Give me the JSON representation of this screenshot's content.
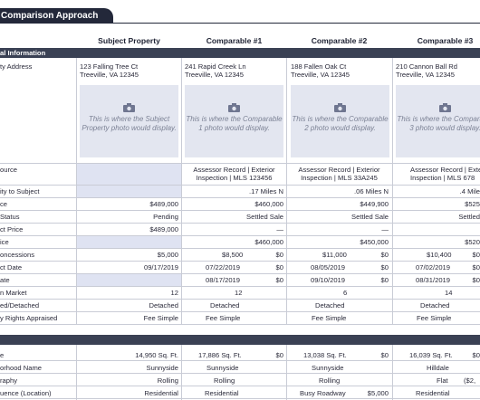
{
  "tab_title": "Comparison Approach",
  "columns": [
    "Subject Property",
    "Comparable #1",
    "Comparable #2",
    "Comparable #3"
  ],
  "sections": {
    "general": "al Information"
  },
  "labels": {
    "address": "ty Address",
    "source": "ource",
    "proximity": "ity to Subject",
    "price": "ce",
    "status": "Status",
    "contract_price": "ct Price",
    "price2": "ice",
    "concessions": "oncessions",
    "contract_date": "ct Date",
    "date": "ate",
    "market": "n Market",
    "detached": "ed/Detached",
    "rights": "y Rights Appraised",
    "size": "e",
    "neighborhood": "orhood Name",
    "topography": "raphy",
    "influence": "uence (Location)"
  },
  "addresses": [
    [
      "123 Falling Tree Ct",
      "Treeville, VA 12345"
    ],
    [
      "241 Rapid Creek Ln",
      "Treeville, VA 12345"
    ],
    [
      "188 Fallen Oak Ct",
      "Treeville, VA 12345"
    ],
    [
      "210 Cannon Ball Rd",
      "Treeville, VA 12345"
    ]
  ],
  "photos": [
    "This is where the Subject Property photo would display.",
    "This is where the Comparable 1 photo would display.",
    "This is where the Comparable 2 photo would display.",
    "This is where the Comparable 3 photo would display."
  ],
  "source": [
    "",
    [
      "Assessor Record | Exterior",
      "Inspection | MLS 123456"
    ],
    [
      "Assessor Record | Exterior",
      "Inspection | MLS 33A245"
    ],
    [
      "Assessor Record | Exte",
      "Inspection | MLS 678"
    ]
  ],
  "proximity": [
    "",
    ".17 Miles N",
    ".06 Miles N",
    ".4 Mile"
  ],
  "price": [
    "$489,000",
    "$460,000",
    "$449,900",
    "$525"
  ],
  "status": [
    "Pending",
    "Settled Sale",
    "Settled Sale",
    "Settled"
  ],
  "contract_price": [
    "$489,000",
    "—",
    "—",
    ""
  ],
  "price2": [
    "",
    "$460,000",
    "$450,000",
    "$520"
  ],
  "concessions": {
    "values": [
      "$5,000",
      "$8,500",
      "$11,000",
      "$10,400"
    ],
    "adj": [
      "$0",
      "$0",
      "$0"
    ]
  },
  "contract_date": {
    "values": [
      "09/17/2019",
      "07/22/2019",
      "08/05/2019",
      "07/02/2019"
    ],
    "adj": [
      "$0",
      "$0",
      "$0"
    ]
  },
  "date": {
    "values": [
      "",
      "08/17/2019",
      "09/10/2019",
      "08/31/2019"
    ],
    "adj": [
      "$0",
      "$0",
      "$0"
    ]
  },
  "market": [
    "12",
    "12",
    "6",
    "14"
  ],
  "detached": [
    "Detached",
    "Detached",
    "Detached",
    "Detached"
  ],
  "rights": [
    "Fee Simple",
    "Fee Simple",
    "Fee Simple",
    "Fee Simple"
  ],
  "size": {
    "values": [
      "14,950 Sq. Ft.",
      "17,886 Sq. Ft.",
      "13,038 Sq. Ft.",
      "16,039 Sq. Ft."
    ],
    "adj": [
      "$0",
      "$0",
      "$0"
    ]
  },
  "neighborhood": [
    "Sunnyside",
    "Sunnyside",
    "Sunnyside",
    "Hilldale"
  ],
  "topography": {
    "values": [
      "Rolling",
      "Rolling",
      "Rolling",
      "Flat"
    ],
    "adj3": "($2,"
  },
  "influence": {
    "values": [
      "Residential",
      "Residential",
      "Busy Roadway",
      "Residential"
    ],
    "adj2": "$5,000"
  }
}
